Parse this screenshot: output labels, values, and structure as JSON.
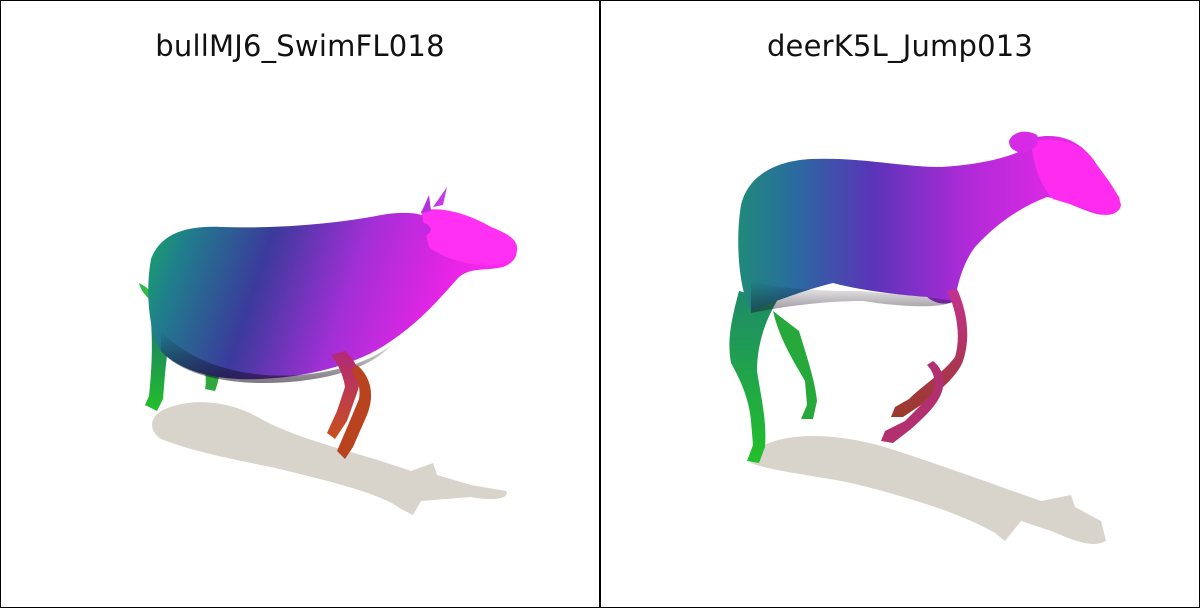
{
  "panels": [
    {
      "title": "bullMJ6_SwimFL018"
    },
    {
      "title": "deerK5L_Jump013"
    }
  ],
  "colors": {
    "shadow": "#d8d4cc",
    "green": "#22c02a",
    "teal": "#1f8a8c",
    "blue": "#3a3aa8",
    "purple": "#9a2fd8",
    "magenta": "#f01ee0",
    "brown": "#9a3a2a",
    "orange": "#c8501c"
  }
}
